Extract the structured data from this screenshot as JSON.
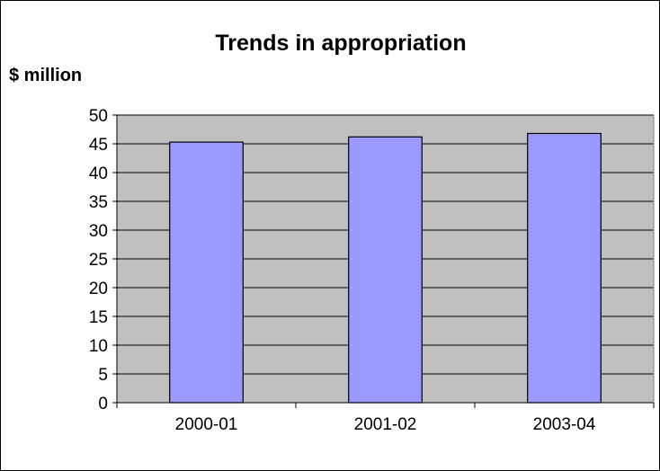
{
  "chart_data": {
    "type": "bar",
    "title": "Trends in appropriation",
    "ylabel": "$ million",
    "xlabel": "",
    "categories": [
      "2000-01",
      "2001-02",
      "2003-04"
    ],
    "values": [
      45.3,
      46.2,
      46.8
    ],
    "ylim": [
      0,
      50
    ],
    "yticks": [
      0,
      5,
      10,
      15,
      20,
      25,
      30,
      35,
      40,
      45,
      50
    ],
    "grid": true,
    "legend": "none",
    "colors": {
      "bar": "#9999ff",
      "plot_background": "#c0c0c0",
      "gridline": "#000000"
    }
  }
}
